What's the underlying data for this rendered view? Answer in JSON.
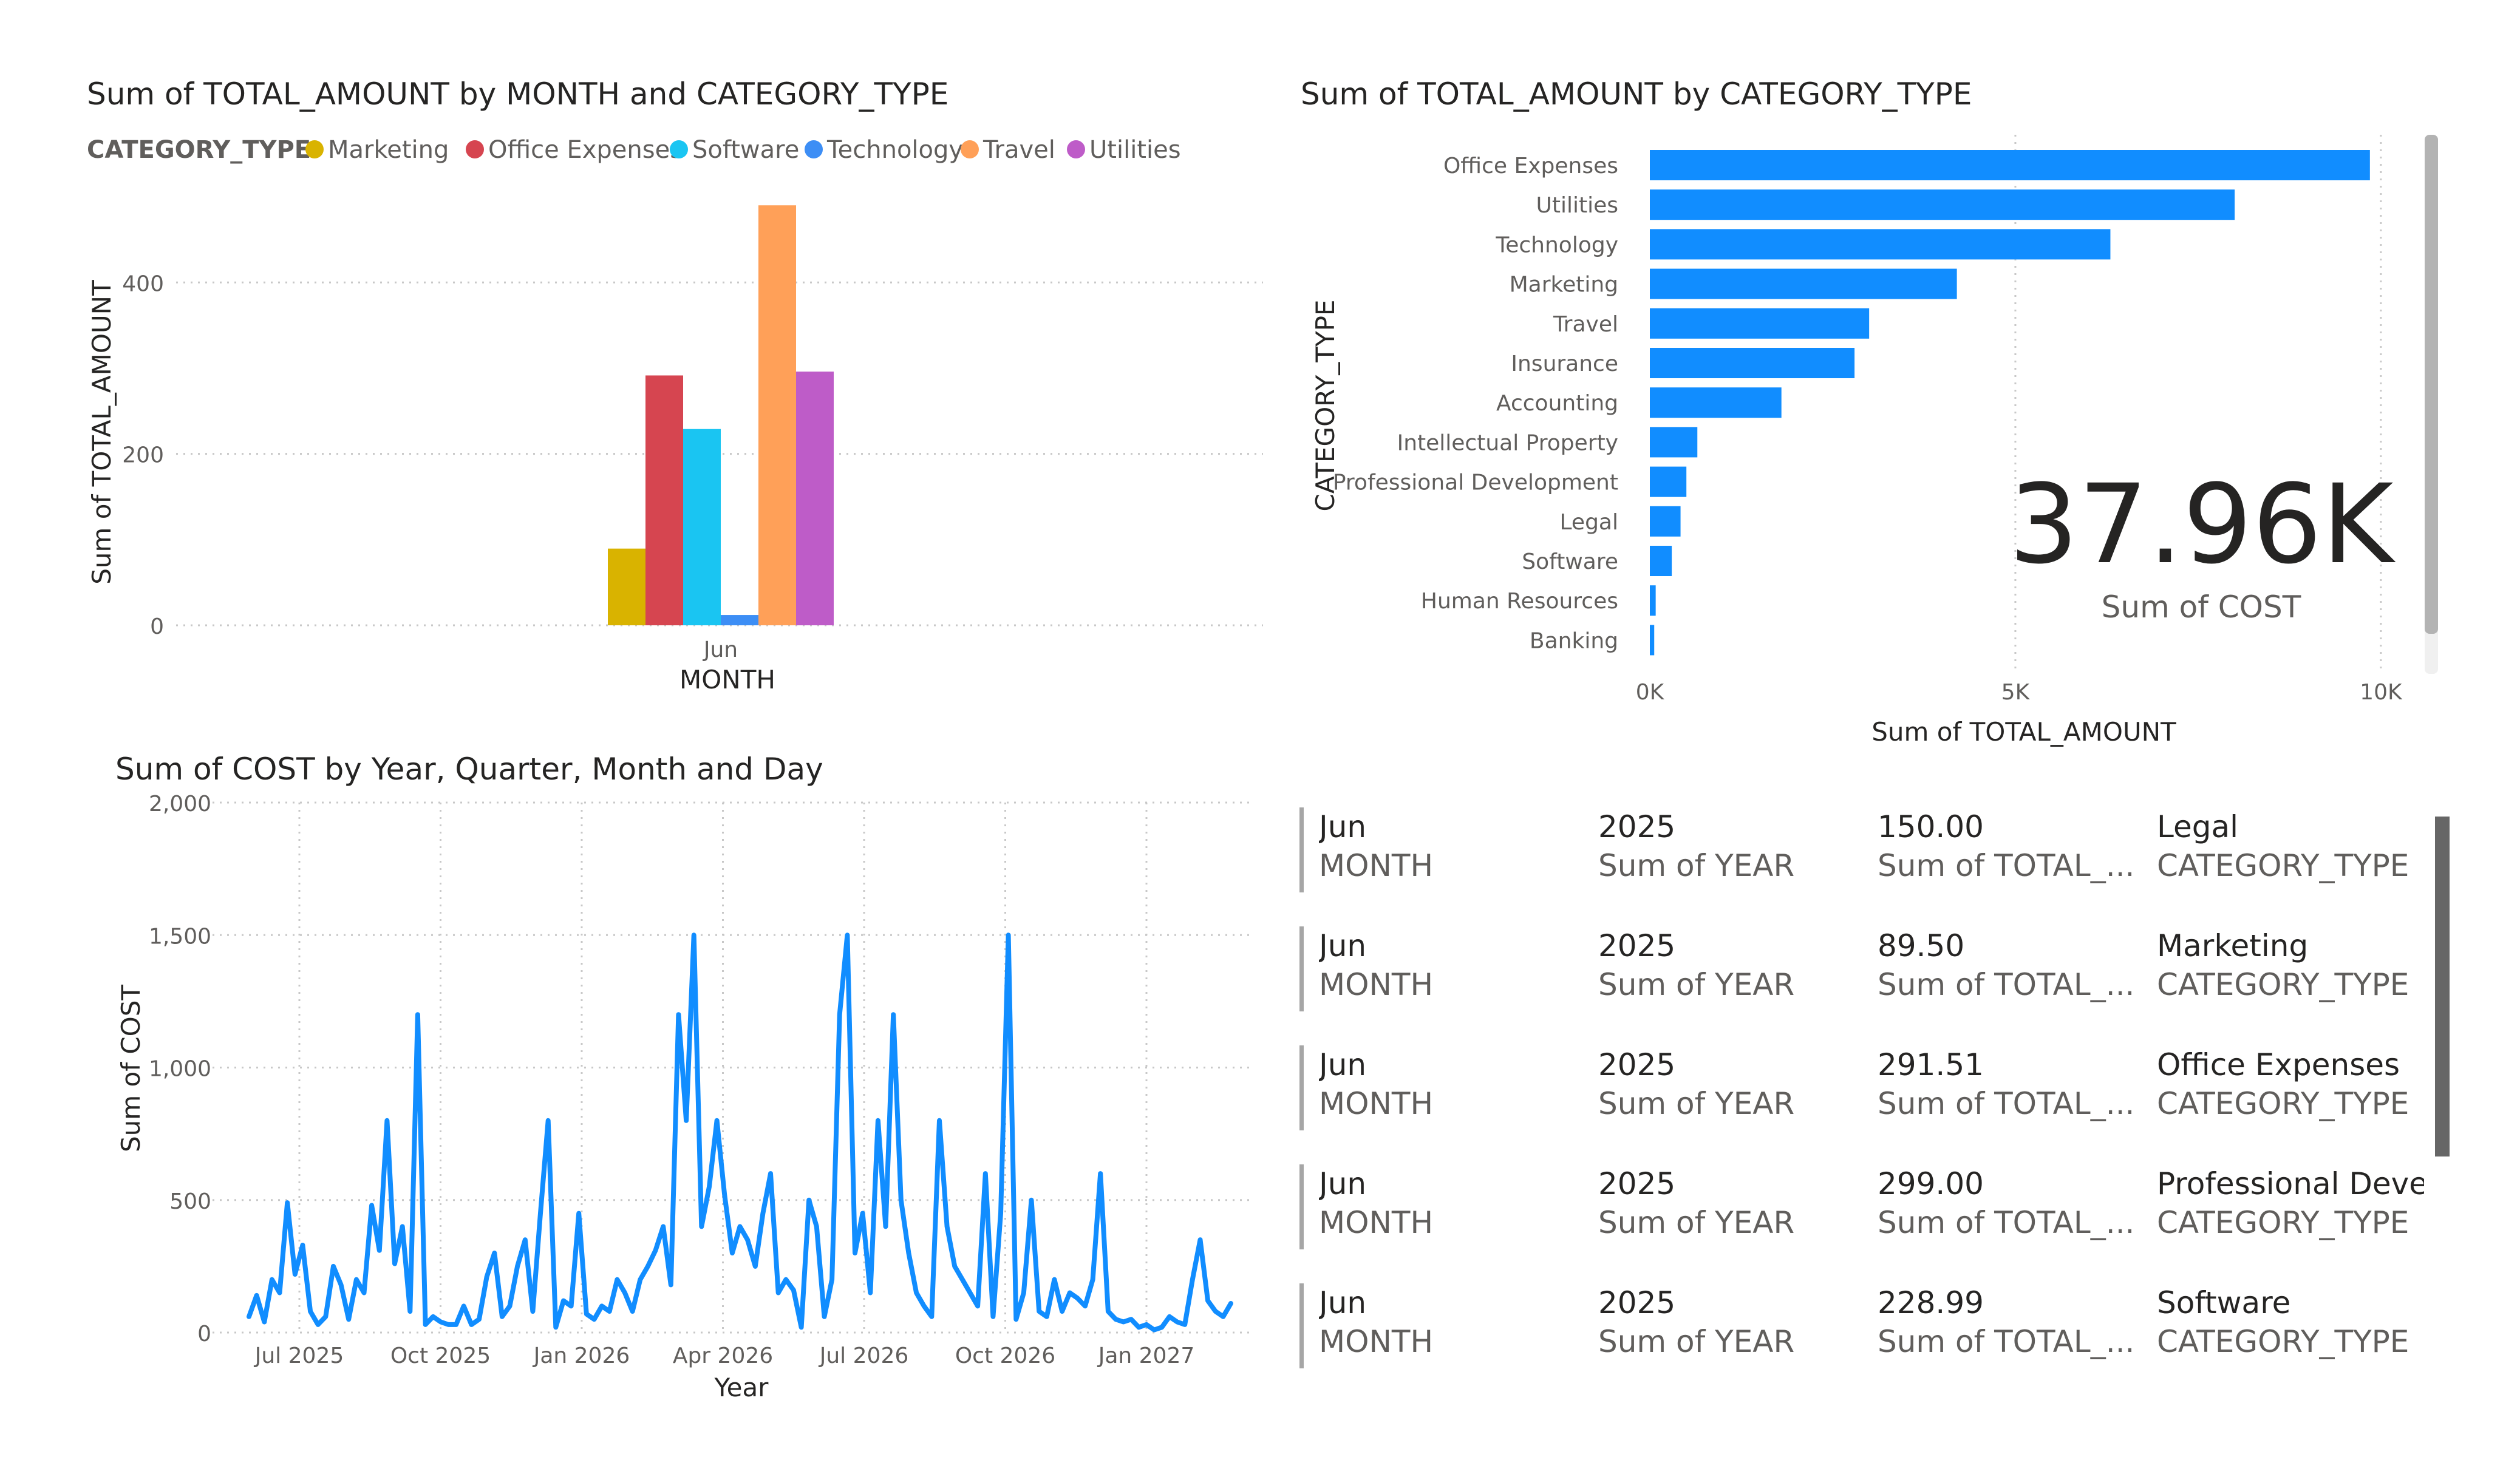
{
  "colors": {
    "Marketing": "#D9B300",
    "Office Expenses": "#D64550",
    "Software": "#1AC5F2",
    "Technology": "#3D8EF5",
    "Travel": "#FFA058",
    "Utilities": "#BE5CC8",
    "bar": "#118DFF",
    "line": "#118DFF"
  },
  "chart_data": [
    {
      "type": "bar",
      "title": "Sum of TOTAL_AMOUNT by MONTH and CATEGORY_TYPE",
      "legend_title": "CATEGORY_TYPE",
      "legend_position": "top-left",
      "categories": [
        "Jun"
      ],
      "series": [
        {
          "name": "Marketing",
          "values": [
            89.5
          ]
        },
        {
          "name": "Office Expenses",
          "values": [
            291.51
          ]
        },
        {
          "name": "Software",
          "values": [
            228.99
          ]
        },
        {
          "name": "Technology",
          "values": [
            12
          ]
        },
        {
          "name": "Travel",
          "values": [
            490
          ]
        },
        {
          "name": "Utilities",
          "values": [
            296
          ]
        }
      ],
      "xlabel": "MONTH",
      "ylabel": "Sum of TOTAL_AMOUNT",
      "ylim": [
        0,
        510
      ],
      "yticks": [
        "0",
        "200",
        "400"
      ],
      "grid": true
    },
    {
      "type": "bar",
      "orientation": "horizontal",
      "title": "Sum of TOTAL_AMOUNT by CATEGORY_TYPE",
      "categories": [
        "Office Expenses",
        "Utilities",
        "Technology",
        "Marketing",
        "Travel",
        "Insurance",
        "Accounting",
        "Intellectual Property",
        "Professional Development",
        "Legal",
        "Software",
        "Human Resources",
        "Banking"
      ],
      "values": [
        9850,
        8000,
        6300,
        4200,
        3000,
        2800,
        1800,
        650,
        500,
        420,
        300,
        80,
        60
      ],
      "xlabel": "Sum of TOTAL_AMOUNT",
      "ylabel": "CATEGORY_TYPE",
      "xlim": [
        0,
        10300
      ],
      "xticks": [
        "0K",
        "5K",
        "10K"
      ],
      "grid": true
    },
    {
      "type": "line",
      "title": "Sum of COST by Year, Quarter, Month and Day",
      "xlabel": "Year",
      "ylabel": "Sum of COST",
      "ylim": [
        0,
        2000
      ],
      "yticks": [
        "0",
        "500",
        "1,000",
        "1,500",
        "2,000"
      ],
      "xticks": [
        "Jul 2025",
        "Oct 2025",
        "Jan 2026",
        "Apr 2026",
        "Jul 2026",
        "Oct 2026",
        "Jan 2027"
      ],
      "grid": true,
      "series": [
        {
          "values": [
            60,
            140,
            40,
            200,
            150,
            490,
            220,
            330,
            80,
            30,
            60,
            250,
            180,
            50,
            200,
            150,
            480,
            310,
            800,
            260,
            400,
            80,
            1200,
            30,
            60,
            40,
            30,
            30,
            100,
            30,
            50,
            210,
            300,
            60,
            100,
            250,
            350,
            80,
            450,
            800,
            20,
            120,
            100,
            450,
            70,
            50,
            100,
            80,
            200,
            150,
            80,
            200,
            250,
            310,
            400,
            180,
            1200,
            800,
            1500,
            400,
            550,
            800,
            520,
            300,
            400,
            350,
            250,
            450,
            600,
            150,
            200,
            160,
            20,
            500,
            400,
            60,
            200,
            1200,
            1500,
            300,
            450,
            150,
            800,
            400,
            1200,
            500,
            300,
            150,
            100,
            60,
            800,
            400,
            250,
            200,
            150,
            100,
            600,
            60,
            450,
            1500,
            50,
            150,
            500,
            80,
            60,
            200,
            80,
            150,
            130,
            100,
            200,
            600,
            80,
            50,
            40,
            50,
            20,
            30,
            10,
            20,
            60,
            40,
            30,
            200,
            350,
            120,
            80,
            60,
            110
          ]
        }
      ]
    }
  ],
  "kpi": {
    "value": "37.96K",
    "label": "Sum of COST"
  },
  "table": {
    "rows": [
      {
        "month": "Jun",
        "month_label": "MONTH",
        "year": "2025",
        "year_label": "Sum of YEAR",
        "amount": "150.00",
        "amount_label": "Sum of TOTAL_...",
        "category": "Legal",
        "category_label": "CATEGORY_TYPE"
      },
      {
        "month": "Jun",
        "month_label": "MONTH",
        "year": "2025",
        "year_label": "Sum of YEAR",
        "amount": "89.50",
        "amount_label": "Sum of TOTAL_...",
        "category": "Marketing",
        "category_label": "CATEGORY_TYPE"
      },
      {
        "month": "Jun",
        "month_label": "MONTH",
        "year": "2025",
        "year_label": "Sum of YEAR",
        "amount": "291.51",
        "amount_label": "Sum of TOTAL_...",
        "category": "Office Expenses",
        "category_label": "CATEGORY_TYPE"
      },
      {
        "month": "Jun",
        "month_label": "MONTH",
        "year": "2025",
        "year_label": "Sum of YEAR",
        "amount": "299.00",
        "amount_label": "Sum of TOTAL_...",
        "category": "Professional Devel...",
        "category_label": "CATEGORY_TYPE"
      },
      {
        "month": "Jun",
        "month_label": "MONTH",
        "year": "2025",
        "year_label": "Sum of YEAR",
        "amount": "228.99",
        "amount_label": "Sum of TOTAL_...",
        "category": "Software",
        "category_label": "CATEGORY_TYPE"
      }
    ]
  }
}
